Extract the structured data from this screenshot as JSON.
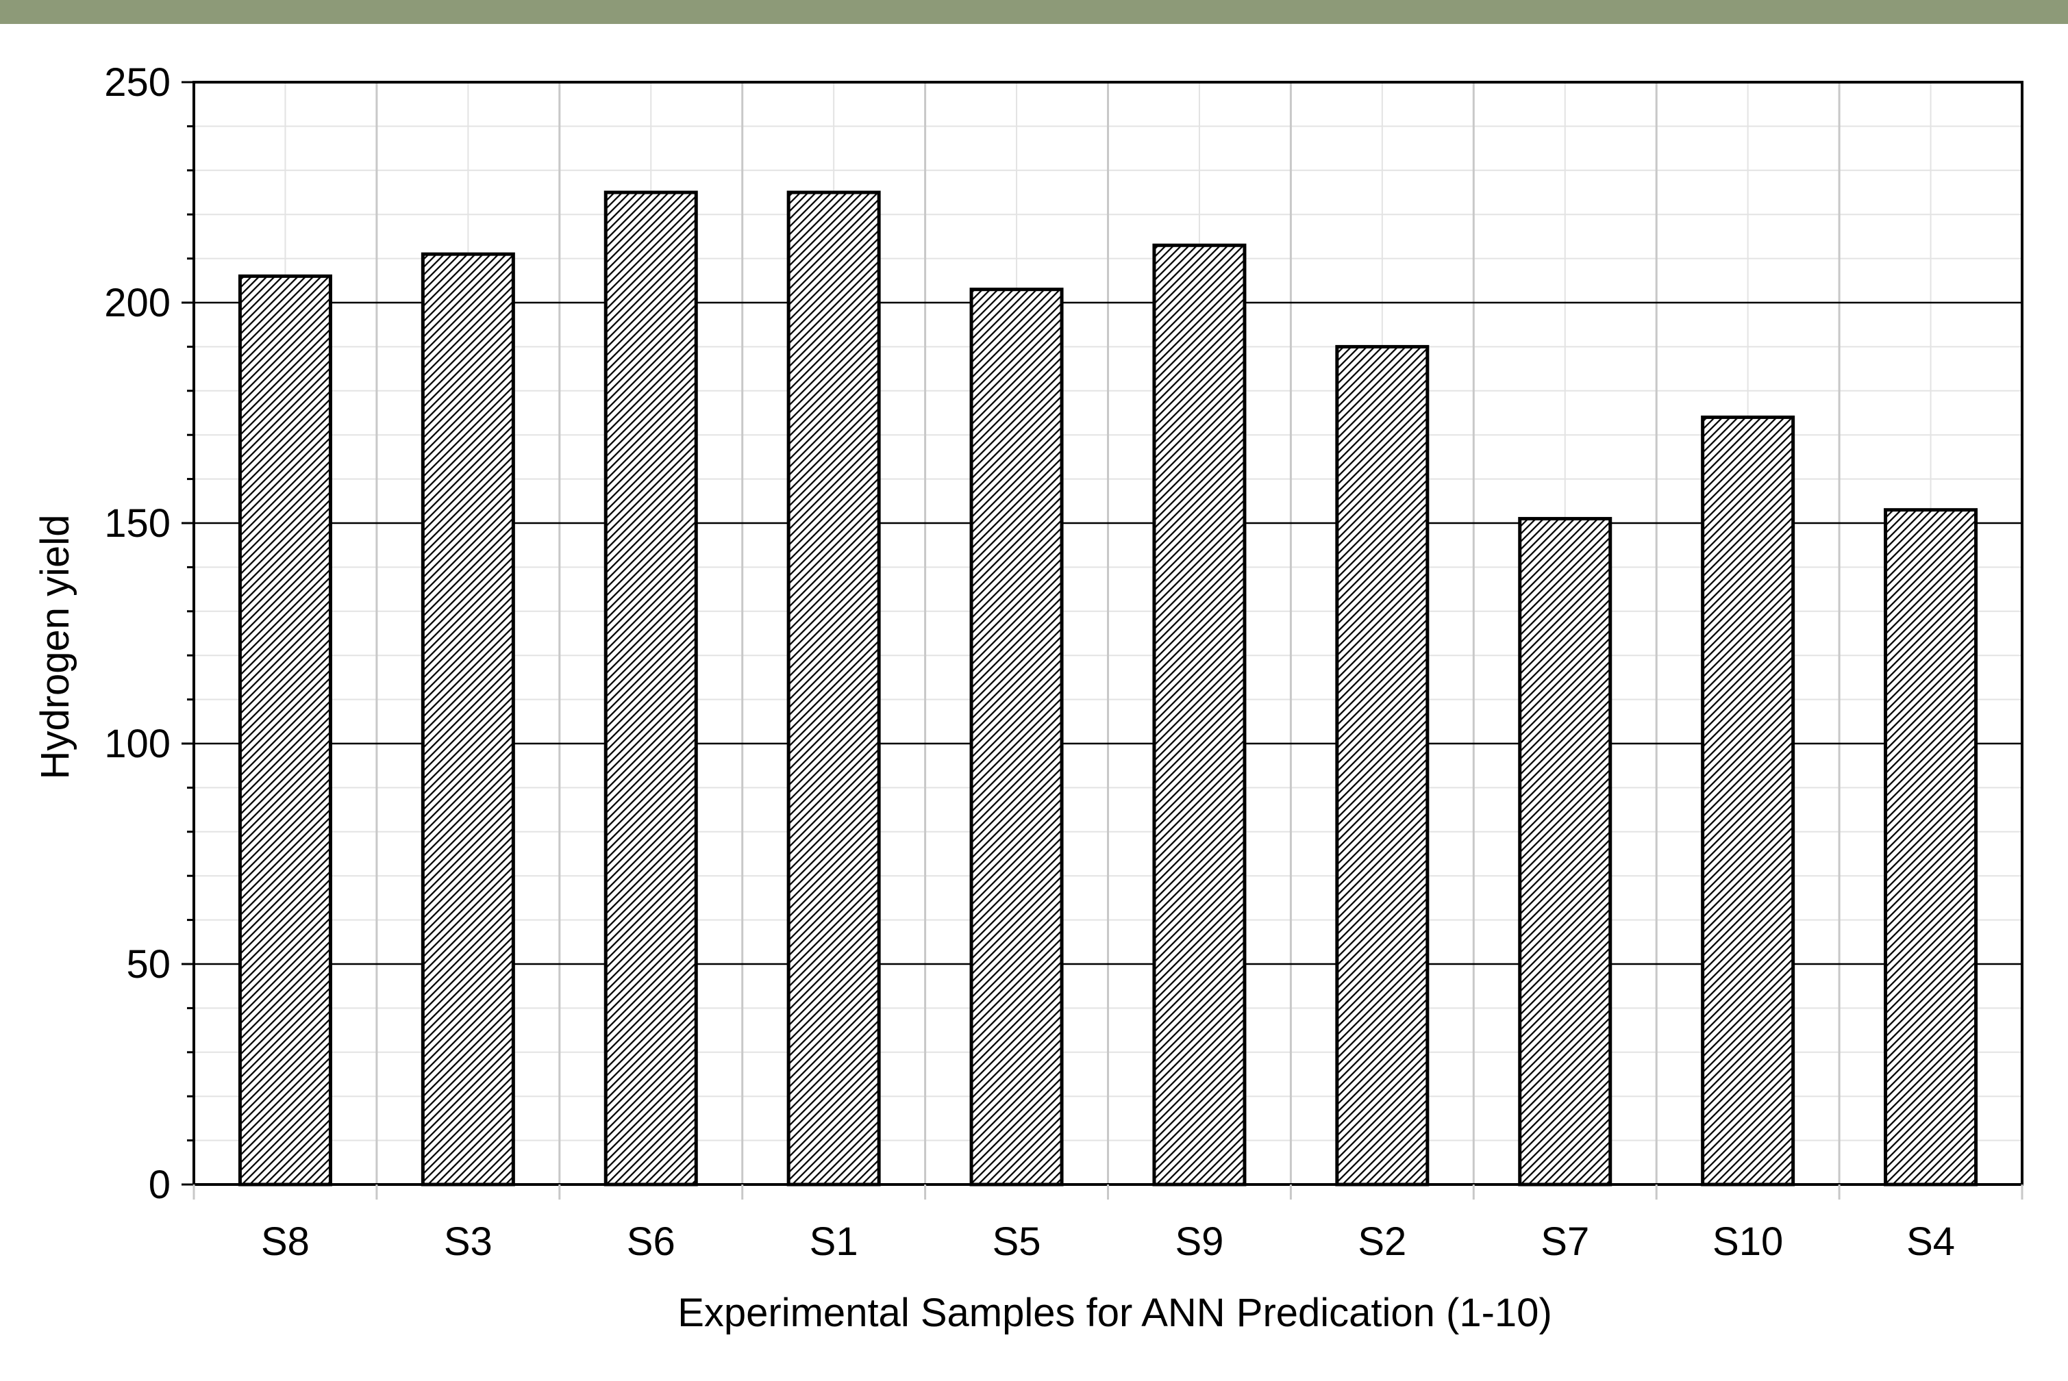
{
  "header": {
    "band_color": "#8d9a78"
  },
  "chart_data": {
    "type": "bar",
    "categories": [
      "S8",
      "S3",
      "S6",
      "S1",
      "S5",
      "S9",
      "S2",
      "S7",
      "S10",
      "S4"
    ],
    "series": [
      {
        "values": [
          206,
          211,
          225,
          225,
          203,
          213,
          190,
          151,
          174,
          153
        ],
        "pattern": "diagonal-hatch",
        "fill_color": "#000000",
        "edge_color": "#000000"
      }
    ],
    "xlabel": "Experimental Samples for ANN Predication (1-10)",
    "ylabel": "Hydrogen yield",
    "ylim": [
      0,
      250
    ],
    "yticks": [
      "0",
      "50",
      "100",
      "150",
      "200",
      "250"
    ],
    "grid": true,
    "legend": "none"
  }
}
